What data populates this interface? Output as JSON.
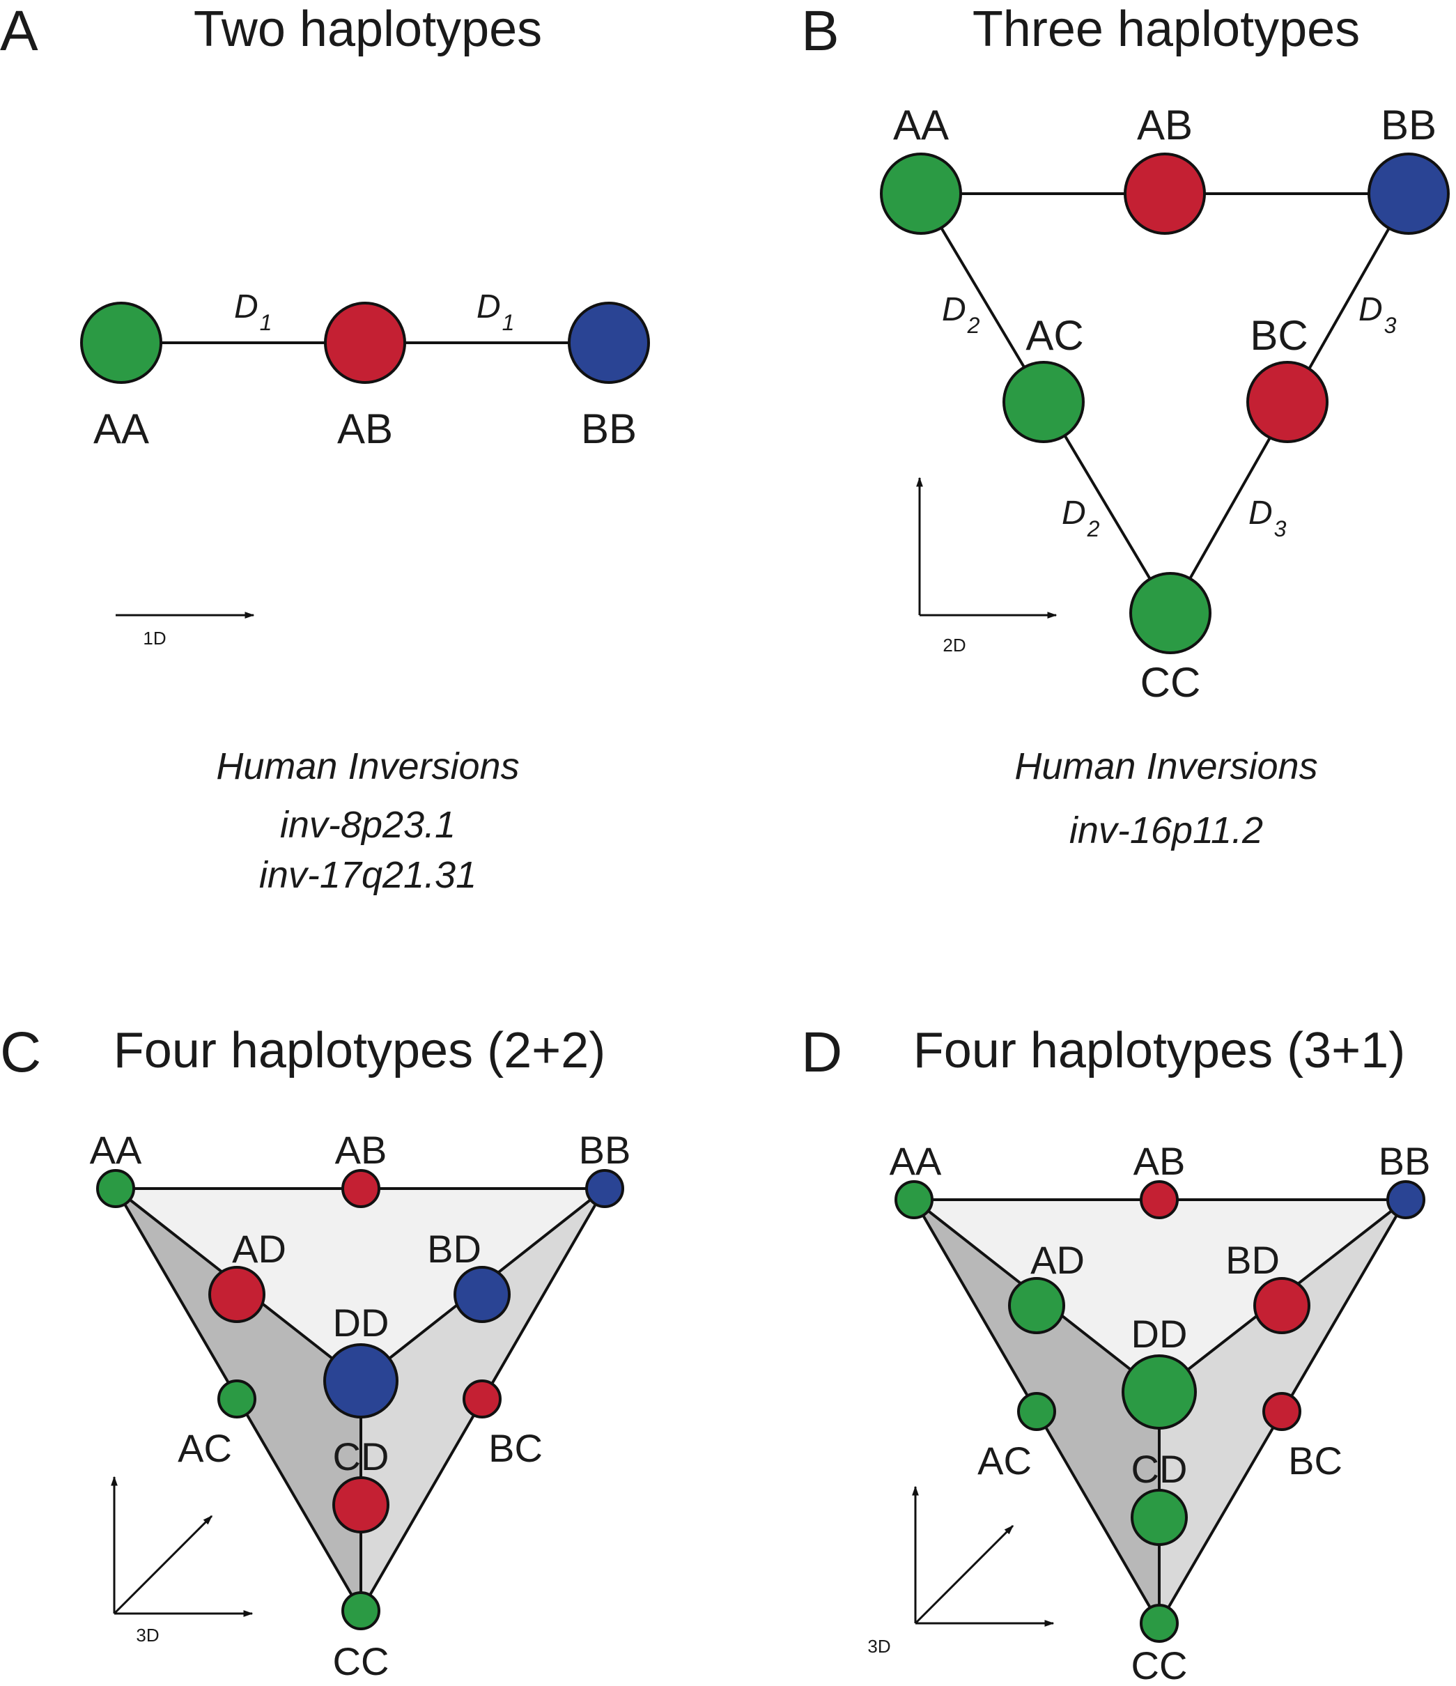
{
  "colors": {
    "green": "#2b9a44",
    "red": "#c42033",
    "blue": "#2a4494",
    "stroke": "#111111",
    "face_light": "#f1f1f1",
    "face_mid": "#d9d9d9",
    "face_dark": "#b8b8b8"
  },
  "panel_a": {
    "letter": "A",
    "title": "Two haplotypes",
    "nodes": {
      "AA": "AA",
      "AB": "AB",
      "BB": "BB"
    },
    "edge_label": {
      "main": "D",
      "sub": "1"
    },
    "axis_label": "1D",
    "caption_title": "Human Inversions",
    "caption_lines": [
      "inv-8p23.1",
      "inv-17q21.31"
    ]
  },
  "panel_b": {
    "letter": "B",
    "title": "Three haplotypes",
    "nodes": {
      "AA": "AA",
      "AB": "AB",
      "BB": "BB",
      "AC": "AC",
      "BC": "BC",
      "CC": "CC"
    },
    "edge_label_2": {
      "main": "D",
      "sub": "2"
    },
    "edge_label_3": {
      "main": "D",
      "sub": "3"
    },
    "axis_label": "2D",
    "caption_title": "Human Inversions",
    "caption_lines": [
      "inv-16p11.2"
    ]
  },
  "panel_c": {
    "letter": "C",
    "title": "Four haplotypes (2+2)",
    "nodes": {
      "AA": "AA",
      "AB": "AB",
      "BB": "BB",
      "AD": "AD",
      "BD": "BD",
      "DD": "DD",
      "AC": "AC",
      "BC": "BC",
      "CD": "CD",
      "CC": "CC"
    },
    "axis_label": "3D"
  },
  "panel_d": {
    "letter": "D",
    "title": "Four haplotypes (3+1)",
    "nodes": {
      "AA": "AA",
      "AB": "AB",
      "BB": "BB",
      "AD": "AD",
      "BD": "BD",
      "DD": "DD",
      "AC": "AC",
      "BC": "BC",
      "CD": "CD",
      "CC": "CC"
    },
    "axis_label": "3D"
  }
}
